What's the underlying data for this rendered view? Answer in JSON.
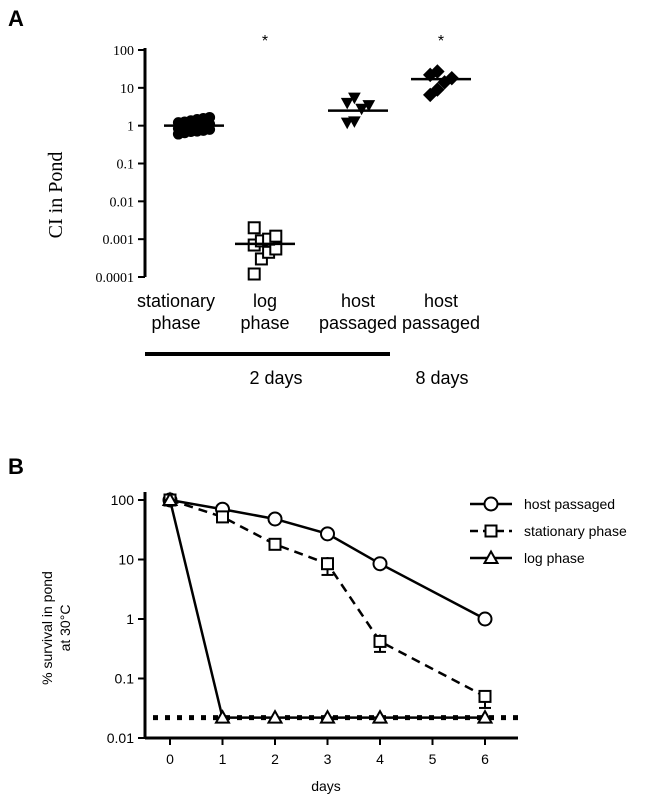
{
  "chart_data": [
    {
      "panel": "A",
      "type": "scatter",
      "ylabel": "CI in Pond",
      "yscale": "log",
      "ylim": [
        0.0001,
        100
      ],
      "yticks": [
        "100",
        "10",
        "1",
        "0.1",
        "0.01",
        "0.001",
        "0.0001"
      ],
      "groups": [
        {
          "label_lines": [
            "stationary",
            "phase"
          ],
          "marker": "circle-filled",
          "values": [
            0.6,
            0.65,
            0.7,
            0.72,
            0.75,
            0.8,
            0.85,
            0.9,
            0.95,
            1.0,
            1.05,
            1.1,
            1.2,
            1.25,
            1.35,
            1.45,
            1.55,
            1.65
          ],
          "median": 1.0,
          "star": ""
        },
        {
          "label_lines": [
            "log",
            "phase"
          ],
          "marker": "square-open",
          "values": [
            0.00012,
            0.0003,
            0.00045,
            0.00055,
            0.0007,
            0.0009,
            0.001,
            0.0012,
            0.002
          ],
          "median": 0.00075,
          "star": "*"
        },
        {
          "label_lines": [
            "host",
            "passaged"
          ],
          "marker": "triangle-down-filled",
          "values": [
            1.2,
            1.3,
            2.8,
            3.5,
            4.0,
            5.5
          ],
          "median": 2.5,
          "star": ""
        },
        {
          "label_lines": [
            "host",
            "passaged"
          ],
          "marker": "diamond-filled",
          "values": [
            6.5,
            9.0,
            14.0,
            18.0,
            22.0,
            27.0
          ],
          "median": 17.0,
          "star": "*"
        }
      ],
      "duration_labels": [
        "2 days",
        "8 days"
      ]
    },
    {
      "panel": "B",
      "type": "line",
      "xlabel": "days",
      "ylabel_lines": [
        "% survival in pond",
        "at 30°C"
      ],
      "yscale": "log",
      "ylim": [
        0.01,
        100
      ],
      "yticks": [
        "100",
        "10",
        "1",
        "0.1",
        "0.01"
      ],
      "x_ticks": [
        0,
        1,
        2,
        3,
        4,
        5,
        6
      ],
      "detection_limit": 0.022,
      "series": [
        {
          "name": "host passaged",
          "marker": "circle-open",
          "dash": "solid",
          "x": [
            0,
            1,
            2,
            3,
            4,
            6
          ],
          "y": [
            100,
            70,
            48,
            27,
            8.5,
            1.0
          ],
          "err": [
            null,
            null,
            null,
            null,
            [
              7.5,
              9.5
            ],
            null
          ]
        },
        {
          "name": "stationary phase",
          "marker": "square-open",
          "dash": "dashed",
          "x": [
            0,
            1,
            2,
            3,
            4,
            6
          ],
          "y": [
            100,
            52,
            18,
            8.5,
            0.42,
            0.05
          ],
          "err": [
            null,
            null,
            null,
            [
              5.5,
              11
            ],
            [
              0.28,
              0.55
            ],
            [
              0.032,
              0.06
            ]
          ]
        },
        {
          "name": "log phase",
          "marker": "triangle-open",
          "dash": "solid",
          "x": [
            0,
            1,
            2,
            3,
            4,
            6
          ],
          "y": [
            100,
            0.022,
            0.022,
            0.022,
            0.022,
            0.022
          ],
          "err": [
            null,
            null,
            null,
            null,
            null,
            null
          ]
        }
      ]
    }
  ],
  "panel_labels": [
    "A",
    "B"
  ]
}
